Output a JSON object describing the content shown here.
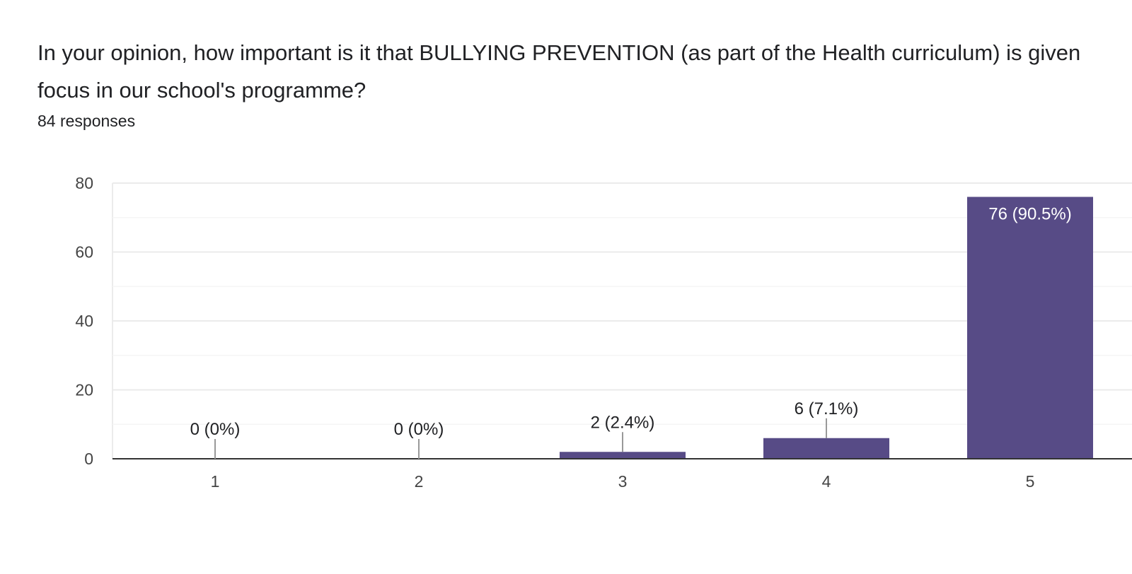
{
  "question": {
    "title": "In your opinion, how important is it that BULLYING PREVENTION (as part of the Health curriculum) is given focus in our school's programme?",
    "responses": "84 responses"
  },
  "colors": {
    "bar": "#574b86",
    "grid": "#ebebeb",
    "axis": "#333333",
    "label_dark": "#202124",
    "label_light": "#ffffff"
  },
  "chart_data": {
    "type": "bar",
    "categories": [
      "1",
      "2",
      "3",
      "4",
      "5"
    ],
    "values": [
      0,
      0,
      2,
      6,
      76
    ],
    "data_labels": [
      "0 (0%)",
      "0 (0%)",
      "2 (2.4%)",
      "6 (7.1%)",
      "76 (90.5%)"
    ],
    "ylim": [
      0,
      80
    ],
    "yticks": [
      0,
      20,
      40,
      60,
      80
    ],
    "grid": true,
    "title": "",
    "xlabel": "",
    "ylabel": ""
  }
}
